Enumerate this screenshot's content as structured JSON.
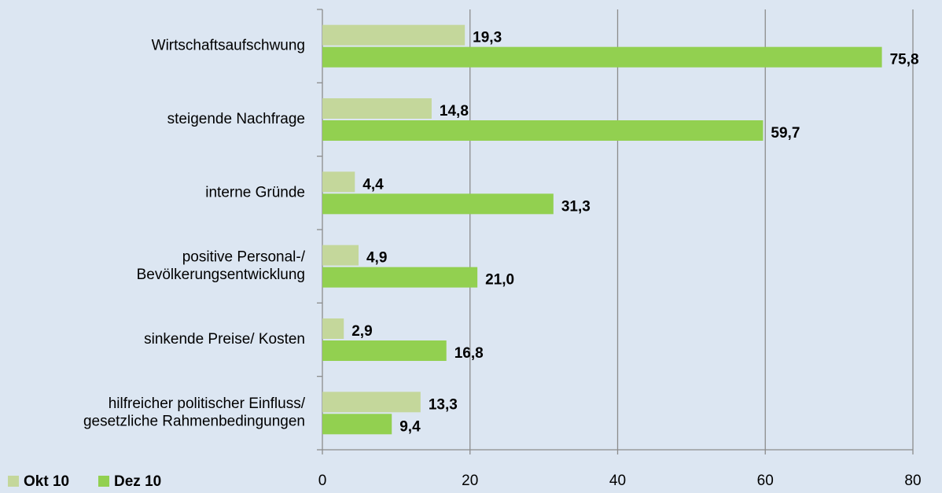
{
  "chart_data": {
    "type": "bar",
    "orientation": "horizontal",
    "categories": [
      "Wirtschaftsaufschwung",
      "steigende Nachfrage",
      "interne Gründe",
      "positive Personal-/\nBevölkerungsentwicklung",
      "sinkende Preise/ Kosten",
      "hilfreicher politischer Einfluss/\ngesetzliche Rahmenbedingungen"
    ],
    "series": [
      {
        "name": "Okt 10",
        "color": "#c4d79b",
        "values": [
          19.3,
          14.8,
          4.4,
          4.9,
          2.9,
          13.3
        ],
        "value_labels": [
          "19,3",
          "14,8",
          "4,4",
          "4,9",
          "2,9",
          "13,3"
        ]
      },
      {
        "name": "Dez 10",
        "color": "#92d050",
        "values": [
          75.8,
          59.7,
          31.3,
          21.0,
          16.8,
          9.4
        ],
        "value_labels": [
          "75,8",
          "59,7",
          "31,3",
          "21,0",
          "16,8",
          "9,4"
        ]
      }
    ],
    "xlim": [
      0,
      80
    ],
    "xticks": [
      0,
      20,
      40,
      60,
      80
    ],
    "grid": true,
    "legend": "bottom-left"
  }
}
